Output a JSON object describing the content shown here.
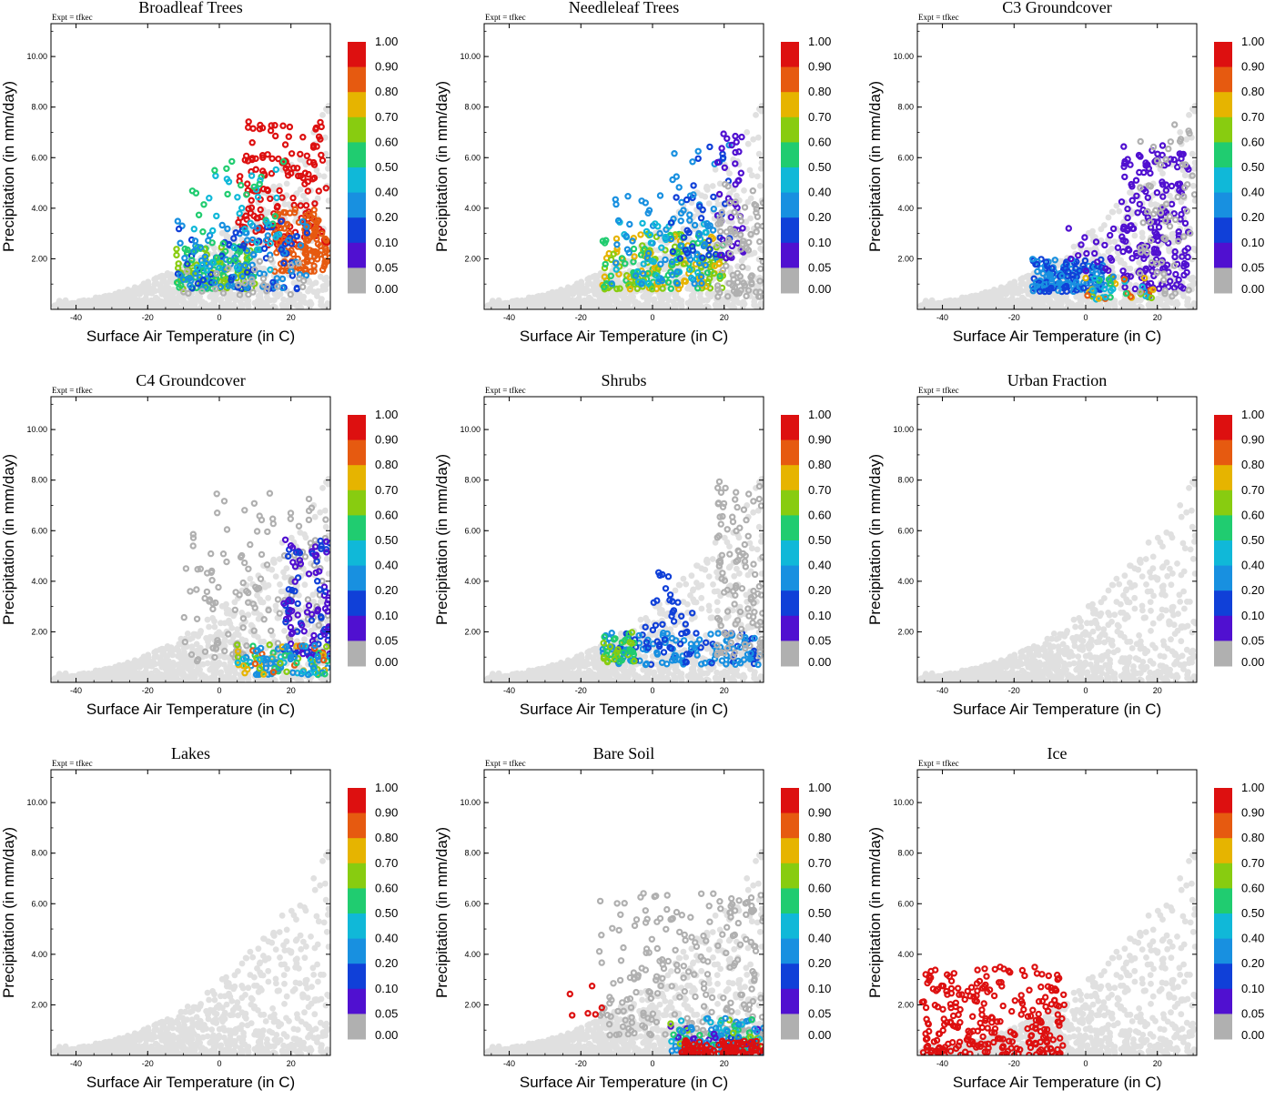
{
  "chart_data": [
    {
      "type": "scatter",
      "title": "Broadleaf Trees",
      "expt": "Expt = tfkec",
      "xlabel": "Surface Air Temperature (in C)",
      "ylabel": "Precipitation (in mm/day)",
      "xlim": [
        -47,
        31
      ],
      "ylim": [
        0,
        11.3
      ],
      "xticks": [
        "-40",
        "-20",
        "0",
        "20"
      ],
      "yticks": [
        "2.00",
        "4.00",
        "6.00",
        "8.00",
        "10.00"
      ],
      "colorbar": [
        "1.00",
        "0.90",
        "0.80",
        "0.70",
        "0.60",
        "0.50",
        "0.40",
        "0.20",
        "0.10",
        "0.05",
        "0.00"
      ],
      "clusters": [
        {
          "x": [
            5,
            30
          ],
          "y": [
            2.5,
            7.5
          ],
          "n": 160,
          "f": [
            0.9,
            1.0
          ]
        },
        {
          "x": [
            15,
            31
          ],
          "y": [
            1.5,
            4.0
          ],
          "n": 110,
          "f": [
            0.8,
            0.9
          ]
        },
        {
          "x": [
            -12,
            10
          ],
          "y": [
            0.8,
            2.5
          ],
          "n": 120,
          "f": [
            0.5,
            0.7
          ]
        },
        {
          "x": [
            -12,
            25
          ],
          "y": [
            0.8,
            3.5
          ],
          "n": 140,
          "f": [
            0.1,
            0.4
          ]
        },
        {
          "x": [
            -8,
            18
          ],
          "y": [
            1.5,
            6.0
          ],
          "n": 60,
          "f": [
            0.4,
            0.6
          ]
        },
        {
          "x": [
            -10,
            25
          ],
          "y": [
            0.5,
            2.0
          ],
          "n": 30,
          "f": [
            0.0,
            0.04
          ]
        }
      ]
    },
    {
      "type": "scatter",
      "title": "Needleleaf Trees",
      "expt": "Expt = tfkec",
      "xlabel": "Surface Air Temperature (in C)",
      "ylabel": "Precipitation (in mm/day)",
      "xlim": [
        -47,
        31
      ],
      "ylim": [
        0,
        11.3
      ],
      "xticks": [
        "-40",
        "-20",
        "0",
        "20"
      ],
      "yticks": [
        "2.00",
        "4.00",
        "6.00",
        "8.00",
        "10.00"
      ],
      "colorbar": [
        "1.00",
        "0.90",
        "0.80",
        "0.70",
        "0.60",
        "0.50",
        "0.40",
        "0.20",
        "0.10",
        "0.05",
        "0.00"
      ],
      "clusters": [
        {
          "x": [
            -14,
            20
          ],
          "y": [
            0.8,
            3.0
          ],
          "n": 200,
          "f": [
            0.5,
            0.8
          ]
        },
        {
          "x": [
            -12,
            15
          ],
          "y": [
            1.0,
            4.5
          ],
          "n": 90,
          "f": [
            0.3,
            0.5
          ]
        },
        {
          "x": [
            5,
            22
          ],
          "y": [
            2.0,
            6.5
          ],
          "n": 60,
          "f": [
            0.1,
            0.3
          ]
        },
        {
          "x": [
            18,
            26
          ],
          "y": [
            2.0,
            7.0
          ],
          "n": 40,
          "f": [
            0.05,
            0.1
          ]
        },
        {
          "x": [
            18,
            31
          ],
          "y": [
            0.5,
            5.0
          ],
          "n": 80,
          "f": [
            0.0,
            0.04
          ]
        }
      ]
    },
    {
      "type": "scatter",
      "title": "C3 Groundcover",
      "expt": "Expt = tfkec",
      "xlabel": "Surface Air Temperature (in C)",
      "ylabel": "Precipitation (in mm/day)",
      "xlim": [
        -47,
        31
      ],
      "ylim": [
        0,
        11.3
      ],
      "xticks": [
        "-40",
        "-20",
        "0",
        "20"
      ],
      "yticks": [
        "2.00",
        "4.00",
        "6.00",
        "8.00",
        "10.00"
      ],
      "colorbar": [
        "1.00",
        "0.90",
        "0.80",
        "0.70",
        "0.60",
        "0.50",
        "0.40",
        "0.20",
        "0.10",
        "0.05",
        "0.00"
      ],
      "clusters": [
        {
          "x": [
            -15,
            5
          ],
          "y": [
            0.7,
            2.0
          ],
          "n": 160,
          "f": [
            0.1,
            0.3
          ]
        },
        {
          "x": [
            -5,
            20
          ],
          "y": [
            1.5,
            3.5
          ],
          "n": 30,
          "f": [
            0.05,
            0.1
          ]
        },
        {
          "x": [
            10,
            29
          ],
          "y": [
            0.8,
            6.5
          ],
          "n": 170,
          "f": [
            0.05,
            0.1
          ]
        },
        {
          "x": [
            0,
            20
          ],
          "y": [
            0.4,
            1.3
          ],
          "n": 50,
          "f": [
            0.3,
            0.9
          ]
        },
        {
          "x": [
            15,
            31
          ],
          "y": [
            0.5,
            7.5
          ],
          "n": 60,
          "f": [
            0.0,
            0.04
          ]
        }
      ]
    },
    {
      "type": "scatter",
      "title": "C4 Groundcover",
      "expt": "Expt = tfkec",
      "xlabel": "Surface Air Temperature (in C)",
      "ylabel": "Precipitation (in mm/day)",
      "xlim": [
        -47,
        31
      ],
      "ylim": [
        0,
        11.3
      ],
      "xticks": [
        "-40",
        "-20",
        "0",
        "20"
      ],
      "yticks": [
        "2.00",
        "4.00",
        "6.00",
        "8.00",
        "10.00"
      ],
      "colorbar": [
        "1.00",
        "0.90",
        "0.80",
        "0.70",
        "0.60",
        "0.50",
        "0.40",
        "0.20",
        "0.10",
        "0.05",
        "0.00"
      ],
      "clusters": [
        {
          "x": [
            -10,
            31
          ],
          "y": [
            0.8,
            7.5
          ],
          "n": 150,
          "f": [
            0.0,
            0.04
          ]
        },
        {
          "x": [
            18,
            31
          ],
          "y": [
            1.0,
            5.8
          ],
          "n": 110,
          "f": [
            0.05,
            0.15
          ]
        },
        {
          "x": [
            5,
            31
          ],
          "y": [
            0.3,
            1.5
          ],
          "n": 110,
          "f": [
            0.2,
            0.9
          ]
        }
      ]
    },
    {
      "type": "scatter",
      "title": "Shrubs",
      "expt": "Expt = tfkec",
      "xlabel": "Surface Air Temperature (in C)",
      "ylabel": "Precipitation (in mm/day)",
      "xlim": [
        -47,
        31
      ],
      "ylim": [
        0,
        11.3
      ],
      "xticks": [
        "-40",
        "-20",
        "0",
        "20"
      ],
      "yticks": [
        "2.00",
        "4.00",
        "6.00",
        "8.00",
        "10.00"
      ],
      "colorbar": [
        "1.00",
        "0.90",
        "0.80",
        "0.70",
        "0.60",
        "0.50",
        "0.40",
        "0.20",
        "0.10",
        "0.05",
        "0.00"
      ],
      "clusters": [
        {
          "x": [
            -14,
            30
          ],
          "y": [
            0.7,
            2.0
          ],
          "n": 150,
          "f": [
            0.1,
            0.4
          ]
        },
        {
          "x": [
            -14,
            -5
          ],
          "y": [
            0.8,
            2.0
          ],
          "n": 40,
          "f": [
            0.5,
            0.7
          ]
        },
        {
          "x": [
            -3,
            12
          ],
          "y": [
            1.5,
            4.5
          ],
          "n": 25,
          "f": [
            0.1,
            0.2
          ]
        },
        {
          "x": [
            18,
            31
          ],
          "y": [
            1.0,
            8.5
          ],
          "n": 110,
          "f": [
            0.0,
            0.04
          ]
        }
      ]
    },
    {
      "type": "scatter",
      "title": "Urban Fraction",
      "expt": "Expt = tfkec",
      "xlabel": "Surface Air Temperature (in C)",
      "ylabel": "Precipitation (in mm/day)",
      "xlim": [
        -47,
        31
      ],
      "ylim": [
        0,
        11.3
      ],
      "xticks": [
        "-40",
        "-20",
        "0",
        "20"
      ],
      "yticks": [
        "2.00",
        "4.00",
        "6.00",
        "8.00",
        "10.00"
      ],
      "colorbar": [
        "1.00",
        "0.90",
        "0.80",
        "0.70",
        "0.60",
        "0.50",
        "0.40",
        "0.20",
        "0.10",
        "0.05",
        "0.00"
      ],
      "clusters": []
    },
    {
      "type": "scatter",
      "title": "Lakes",
      "expt": "Expt = tfkec",
      "xlabel": "Surface Air Temperature (in C)",
      "ylabel": "Precipitation (in mm/day)",
      "xlim": [
        -47,
        31
      ],
      "ylim": [
        0,
        11.3
      ],
      "xticks": [
        "-40",
        "-20",
        "0",
        "20"
      ],
      "yticks": [
        "2.00",
        "4.00",
        "6.00",
        "8.00",
        "10.00"
      ],
      "colorbar": [
        "1.00",
        "0.90",
        "0.80",
        "0.70",
        "0.60",
        "0.50",
        "0.40",
        "0.20",
        "0.10",
        "0.05",
        "0.00"
      ],
      "clusters": []
    },
    {
      "type": "scatter",
      "title": "Bare Soil",
      "expt": "Expt = tfkec",
      "xlabel": "Surface Air Temperature (in C)",
      "ylabel": "Precipitation (in mm/day)",
      "xlim": [
        -47,
        31
      ],
      "ylim": [
        0,
        11.3
      ],
      "xticks": [
        "-40",
        "-20",
        "0",
        "20"
      ],
      "yticks": [
        "2.00",
        "4.00",
        "6.00",
        "8.00",
        "10.00"
      ],
      "colorbar": [
        "1.00",
        "0.90",
        "0.80",
        "0.70",
        "0.60",
        "0.50",
        "0.40",
        "0.20",
        "0.10",
        "0.05",
        "0.00"
      ],
      "clusters": [
        {
          "x": [
            -15,
            31
          ],
          "y": [
            0.8,
            6.5
          ],
          "n": 220,
          "f": [
            0.0,
            0.04
          ]
        },
        {
          "x": [
            5,
            31
          ],
          "y": [
            0.1,
            1.5
          ],
          "n": 150,
          "f": [
            0.05,
            0.7
          ]
        },
        {
          "x": [
            8,
            31
          ],
          "y": [
            0.05,
            0.6
          ],
          "n": 100,
          "f": [
            0.9,
            1.0
          ]
        },
        {
          "x": [
            -25,
            -14
          ],
          "y": [
            1.5,
            3.6
          ],
          "n": 6,
          "f": [
            0.9,
            1.0
          ]
        }
      ]
    },
    {
      "type": "scatter",
      "title": "Ice",
      "expt": "Expt = tfkec",
      "xlabel": "Surface Air Temperature (in C)",
      "ylabel": "Precipitation (in mm/day)",
      "xlim": [
        -47,
        31
      ],
      "ylim": [
        0,
        11.3
      ],
      "xticks": [
        "-40",
        "-20",
        "0",
        "20"
      ],
      "yticks": [
        "2.00",
        "4.00",
        "6.00",
        "8.00",
        "10.00"
      ],
      "colorbar": [
        "1.00",
        "0.90",
        "0.80",
        "0.70",
        "0.60",
        "0.50",
        "0.40",
        "0.20",
        "0.10",
        "0.05",
        "0.00"
      ],
      "clusters": [
        {
          "x": [
            -46,
            -6
          ],
          "y": [
            0.0,
            3.5
          ],
          "n": 260,
          "f": [
            0.9,
            1.0
          ]
        }
      ]
    }
  ],
  "colorbar_colors": [
    "#dd1010",
    "#e65a10",
    "#e6b400",
    "#88cc10",
    "#20cc70",
    "#10b8d8",
    "#1890e0",
    "#1040d8",
    "#5010d0",
    "#b0b0b0"
  ],
  "background_color": "#e0e0e0",
  "nodata_color": "#b0b0b0"
}
